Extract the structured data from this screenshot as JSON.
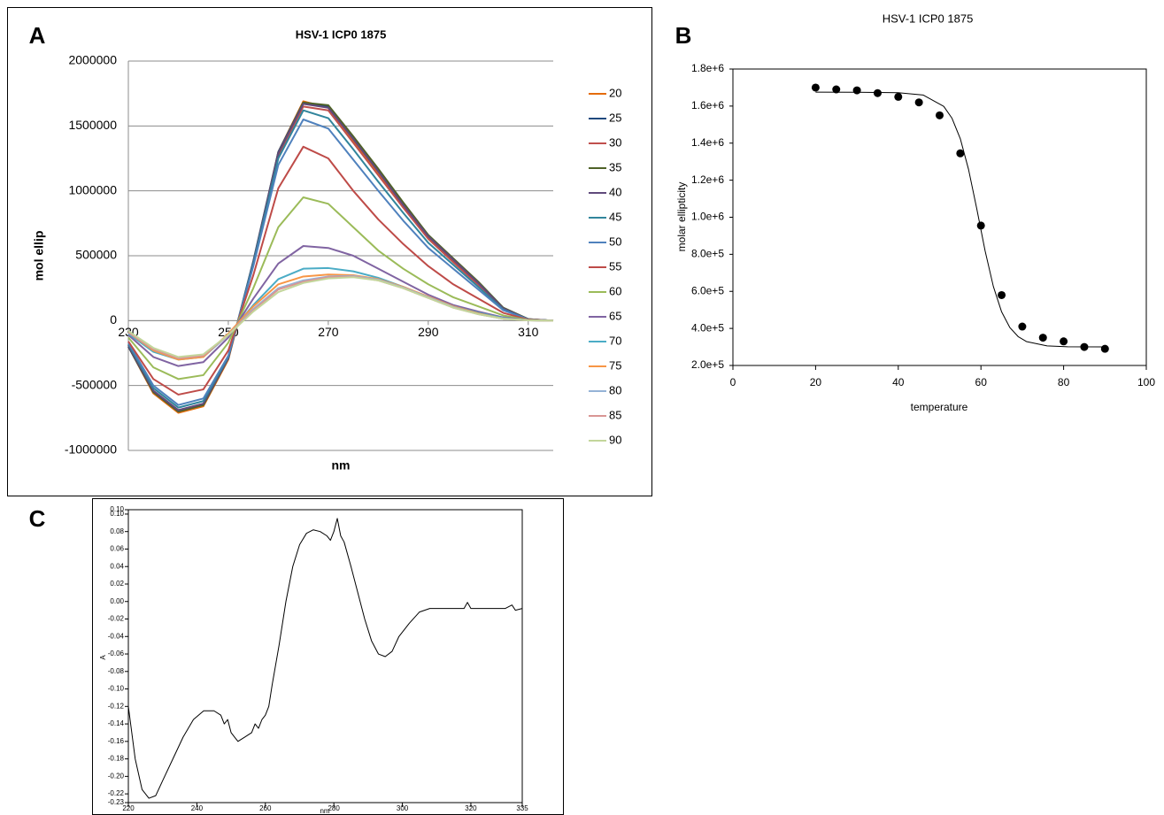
{
  "chart_data": [
    {
      "type": "line",
      "panel_label": "A",
      "title": "HSV-1 ICP0 1875",
      "x_label": "nm",
      "y_label": "mol ellip",
      "x": [
        230,
        235,
        240,
        245,
        250,
        255,
        260,
        265,
        270,
        275,
        280,
        285,
        290,
        295,
        300,
        305,
        310,
        315
      ],
      "xlim": [
        230,
        315
      ],
      "xticks": [
        230,
        250,
        270,
        290,
        310
      ],
      "ylim": [
        -1000000,
        2000000
      ],
      "yticks": [
        -1000000,
        -500000,
        0,
        500000,
        1000000,
        1500000,
        2000000
      ],
      "grid": true,
      "legend": "right",
      "series": [
        {
          "name": "20",
          "color": "#e46c0a",
          "values": [
            -200000,
            -560000,
            -710000,
            -660000,
            -300000,
            450000,
            1300000,
            1690000,
            1640000,
            1390000,
            1140000,
            880000,
            640000,
            460000,
            280000,
            90000,
            10000,
            0
          ]
        },
        {
          "name": "25",
          "color": "#1f497d",
          "values": [
            -200000,
            -550000,
            -700000,
            -650000,
            -290000,
            460000,
            1300000,
            1680000,
            1650000,
            1400000,
            1150000,
            900000,
            650000,
            470000,
            290000,
            95000,
            12000,
            0
          ]
        },
        {
          "name": "30",
          "color": "#c0504d",
          "values": [
            -190000,
            -540000,
            -690000,
            -640000,
            -290000,
            440000,
            1270000,
            1650000,
            1620000,
            1370000,
            1120000,
            870000,
            630000,
            450000,
            275000,
            90000,
            10000,
            0
          ]
        },
        {
          "name": "35",
          "color": "#4f6228",
          "values": [
            -190000,
            -550000,
            -700000,
            -650000,
            -290000,
            450000,
            1290000,
            1680000,
            1660000,
            1420000,
            1170000,
            910000,
            660000,
            480000,
            300000,
            100000,
            12000,
            0
          ]
        },
        {
          "name": "40",
          "color": "#604a7b",
          "values": [
            -190000,
            -540000,
            -690000,
            -640000,
            -290000,
            450000,
            1290000,
            1670000,
            1640000,
            1400000,
            1150000,
            890000,
            650000,
            470000,
            290000,
            95000,
            10000,
            0
          ]
        },
        {
          "name": "45",
          "color": "#31859c",
          "values": [
            -180000,
            -520000,
            -670000,
            -620000,
            -280000,
            440000,
            1250000,
            1620000,
            1560000,
            1320000,
            1070000,
            830000,
            600000,
            430000,
            260000,
            85000,
            10000,
            0
          ]
        },
        {
          "name": "50",
          "color": "#4f81bd",
          "values": [
            -170000,
            -500000,
            -650000,
            -600000,
            -270000,
            420000,
            1200000,
            1550000,
            1480000,
            1240000,
            1000000,
            770000,
            560000,
            400000,
            240000,
            80000,
            10000,
            0
          ]
        },
        {
          "name": "55",
          "color": "#be4b48",
          "values": [
            -160000,
            -450000,
            -570000,
            -530000,
            -230000,
            350000,
            1020000,
            1340000,
            1250000,
            1000000,
            780000,
            590000,
            420000,
            280000,
            170000,
            60000,
            8000,
            0
          ]
        },
        {
          "name": "60",
          "color": "#9bbb59",
          "values": [
            -130000,
            -360000,
            -450000,
            -420000,
            -170000,
            250000,
            720000,
            950000,
            900000,
            720000,
            540000,
            400000,
            280000,
            180000,
            110000,
            40000,
            5000,
            0
          ]
        },
        {
          "name": "65",
          "color": "#8064a2",
          "values": [
            -110000,
            -280000,
            -350000,
            -320000,
            -130000,
            170000,
            440000,
            575000,
            560000,
            500000,
            400000,
            300000,
            200000,
            120000,
            70000,
            25000,
            3000,
            0
          ]
        },
        {
          "name": "70",
          "color": "#4bacc6",
          "values": [
            -100000,
            -240000,
            -300000,
            -280000,
            -110000,
            120000,
            320000,
            400000,
            405000,
            380000,
            330000,
            260000,
            180000,
            110000,
            60000,
            20000,
            2000,
            0
          ]
        },
        {
          "name": "75",
          "color": "#f79646",
          "values": [
            -90000,
            -230000,
            -300000,
            -280000,
            -100000,
            110000,
            280000,
            340000,
            355000,
            350000,
            320000,
            260000,
            185000,
            110000,
            55000,
            15000,
            2000,
            0
          ]
        },
        {
          "name": "80",
          "color": "#95b3d7",
          "values": [
            -90000,
            -220000,
            -290000,
            -270000,
            -110000,
            90000,
            250000,
            310000,
            340000,
            345000,
            315000,
            255000,
            180000,
            105000,
            50000,
            15000,
            2000,
            0
          ]
        },
        {
          "name": "85",
          "color": "#d99694",
          "values": [
            -90000,
            -220000,
            -290000,
            -270000,
            -110000,
            80000,
            240000,
            300000,
            335000,
            340000,
            310000,
            250000,
            175000,
            100000,
            50000,
            15000,
            2000,
            0
          ]
        },
        {
          "name": "90",
          "color": "#c3d69b",
          "values": [
            -80000,
            -210000,
            -280000,
            -260000,
            -110000,
            70000,
            220000,
            290000,
            325000,
            335000,
            310000,
            250000,
            175000,
            100000,
            50000,
            15000,
            2000,
            0
          ]
        }
      ]
    },
    {
      "type": "scatter",
      "panel_label": "B",
      "title": "HSV-1 ICP0 1875",
      "x_label": "temperature",
      "y_label": "molar ellipticity",
      "xlim": [
        0,
        100
      ],
      "xticks": [
        0,
        20,
        40,
        60,
        80,
        100
      ],
      "ylim": [
        200000,
        1800000
      ],
      "yticks": [
        {
          "value": 200000,
          "label": "2.0e+5"
        },
        {
          "value": 400000,
          "label": "4.0e+5"
        },
        {
          "value": 600000,
          "label": "6.0e+5"
        },
        {
          "value": 800000,
          "label": "8.0e+5"
        },
        {
          "value": 1000000,
          "label": "1.0e+6"
        },
        {
          "value": 1200000,
          "label": "1.2e+6"
        },
        {
          "value": 1400000,
          "label": "1.4e+6"
        },
        {
          "value": 1600000,
          "label": "1.6e+6"
        },
        {
          "value": 1800000,
          "label": "1.8e+6"
        }
      ],
      "series": [
        {
          "color": "#000000",
          "marker": "circle",
          "x": [
            20,
            25,
            30,
            35,
            40,
            45,
            50,
            55,
            60,
            65,
            70,
            75,
            80,
            85,
            90
          ],
          "values": [
            1700000,
            1690000,
            1685000,
            1670000,
            1650000,
            1620000,
            1550000,
            1345000,
            955000,
            580000,
            410000,
            350000,
            330000,
            300000,
            290000
          ]
        },
        {
          "color": "#000000",
          "marker": "none",
          "x": [
            20,
            30,
            40,
            46,
            51,
            53,
            55,
            57,
            59,
            61,
            63,
            65,
            67,
            69,
            71,
            76,
            81,
            90
          ],
          "values": [
            1675000,
            1674900,
            1672100,
            1659900,
            1598400,
            1534300,
            1424300,
            1258200,
            1044800,
            819100,
            626600,
            489400,
            404300,
            355700,
            329100,
            305600,
            301100,
            300000
          ]
        }
      ]
    },
    {
      "type": "line",
      "panel_label": "C",
      "x_label": "nm",
      "y_label": "A",
      "x": [
        220,
        222,
        224,
        226,
        228,
        230,
        233,
        236,
        239,
        242,
        245,
        247,
        248,
        249,
        250,
        251,
        252,
        254,
        256,
        257,
        258,
        259,
        260,
        261,
        262,
        264,
        266,
        268,
        270,
        272,
        274,
        276,
        278,
        279,
        280,
        281,
        282,
        283,
        285,
        287,
        289,
        291,
        293,
        295,
        297,
        299,
        302,
        305,
        308,
        312,
        316,
        318,
        319,
        320,
        325,
        330,
        332,
        333,
        335
      ],
      "xlim": [
        220,
        335
      ],
      "xticks": [
        220,
        240,
        260,
        280,
        300,
        320,
        335
      ],
      "ylim": [
        -0.23,
        0.105
      ],
      "yticks": [
        {
          "value": 0.105,
          "label": "0.10"
        },
        {
          "value": 0.1,
          "label": "0.10"
        },
        0.08,
        0.06,
        0.04,
        0.02,
        {
          "value": 0,
          "label": "0.00"
        },
        -0.02,
        -0.04,
        -0.06,
        -0.08,
        {
          "value": -0.1,
          "label": "-0.10"
        },
        -0.12,
        -0.14,
        -0.16,
        -0.18,
        {
          "value": -0.2,
          "label": "-0.20"
        },
        -0.22,
        -0.23
      ],
      "series": [
        {
          "color": "#000000",
          "values": [
            -0.12,
            -0.18,
            -0.215,
            -0.225,
            -0.222,
            -0.205,
            -0.18,
            -0.155,
            -0.135,
            -0.125,
            -0.125,
            -0.13,
            -0.14,
            -0.135,
            -0.15,
            -0.155,
            -0.16,
            -0.155,
            -0.15,
            -0.14,
            -0.145,
            -0.135,
            -0.13,
            -0.12,
            -0.095,
            -0.05,
            0.0,
            0.04,
            0.065,
            0.078,
            0.082,
            0.08,
            0.075,
            0.07,
            0.08,
            0.095,
            0.075,
            0.068,
            0.04,
            0.01,
            -0.02,
            -0.045,
            -0.06,
            -0.063,
            -0.057,
            -0.04,
            -0.025,
            -0.012,
            -0.008,
            -0.008,
            -0.008,
            -0.008,
            -0.001,
            -0.008,
            -0.008,
            -0.008,
            -0.004,
            -0.01,
            -0.008
          ]
        }
      ]
    }
  ]
}
